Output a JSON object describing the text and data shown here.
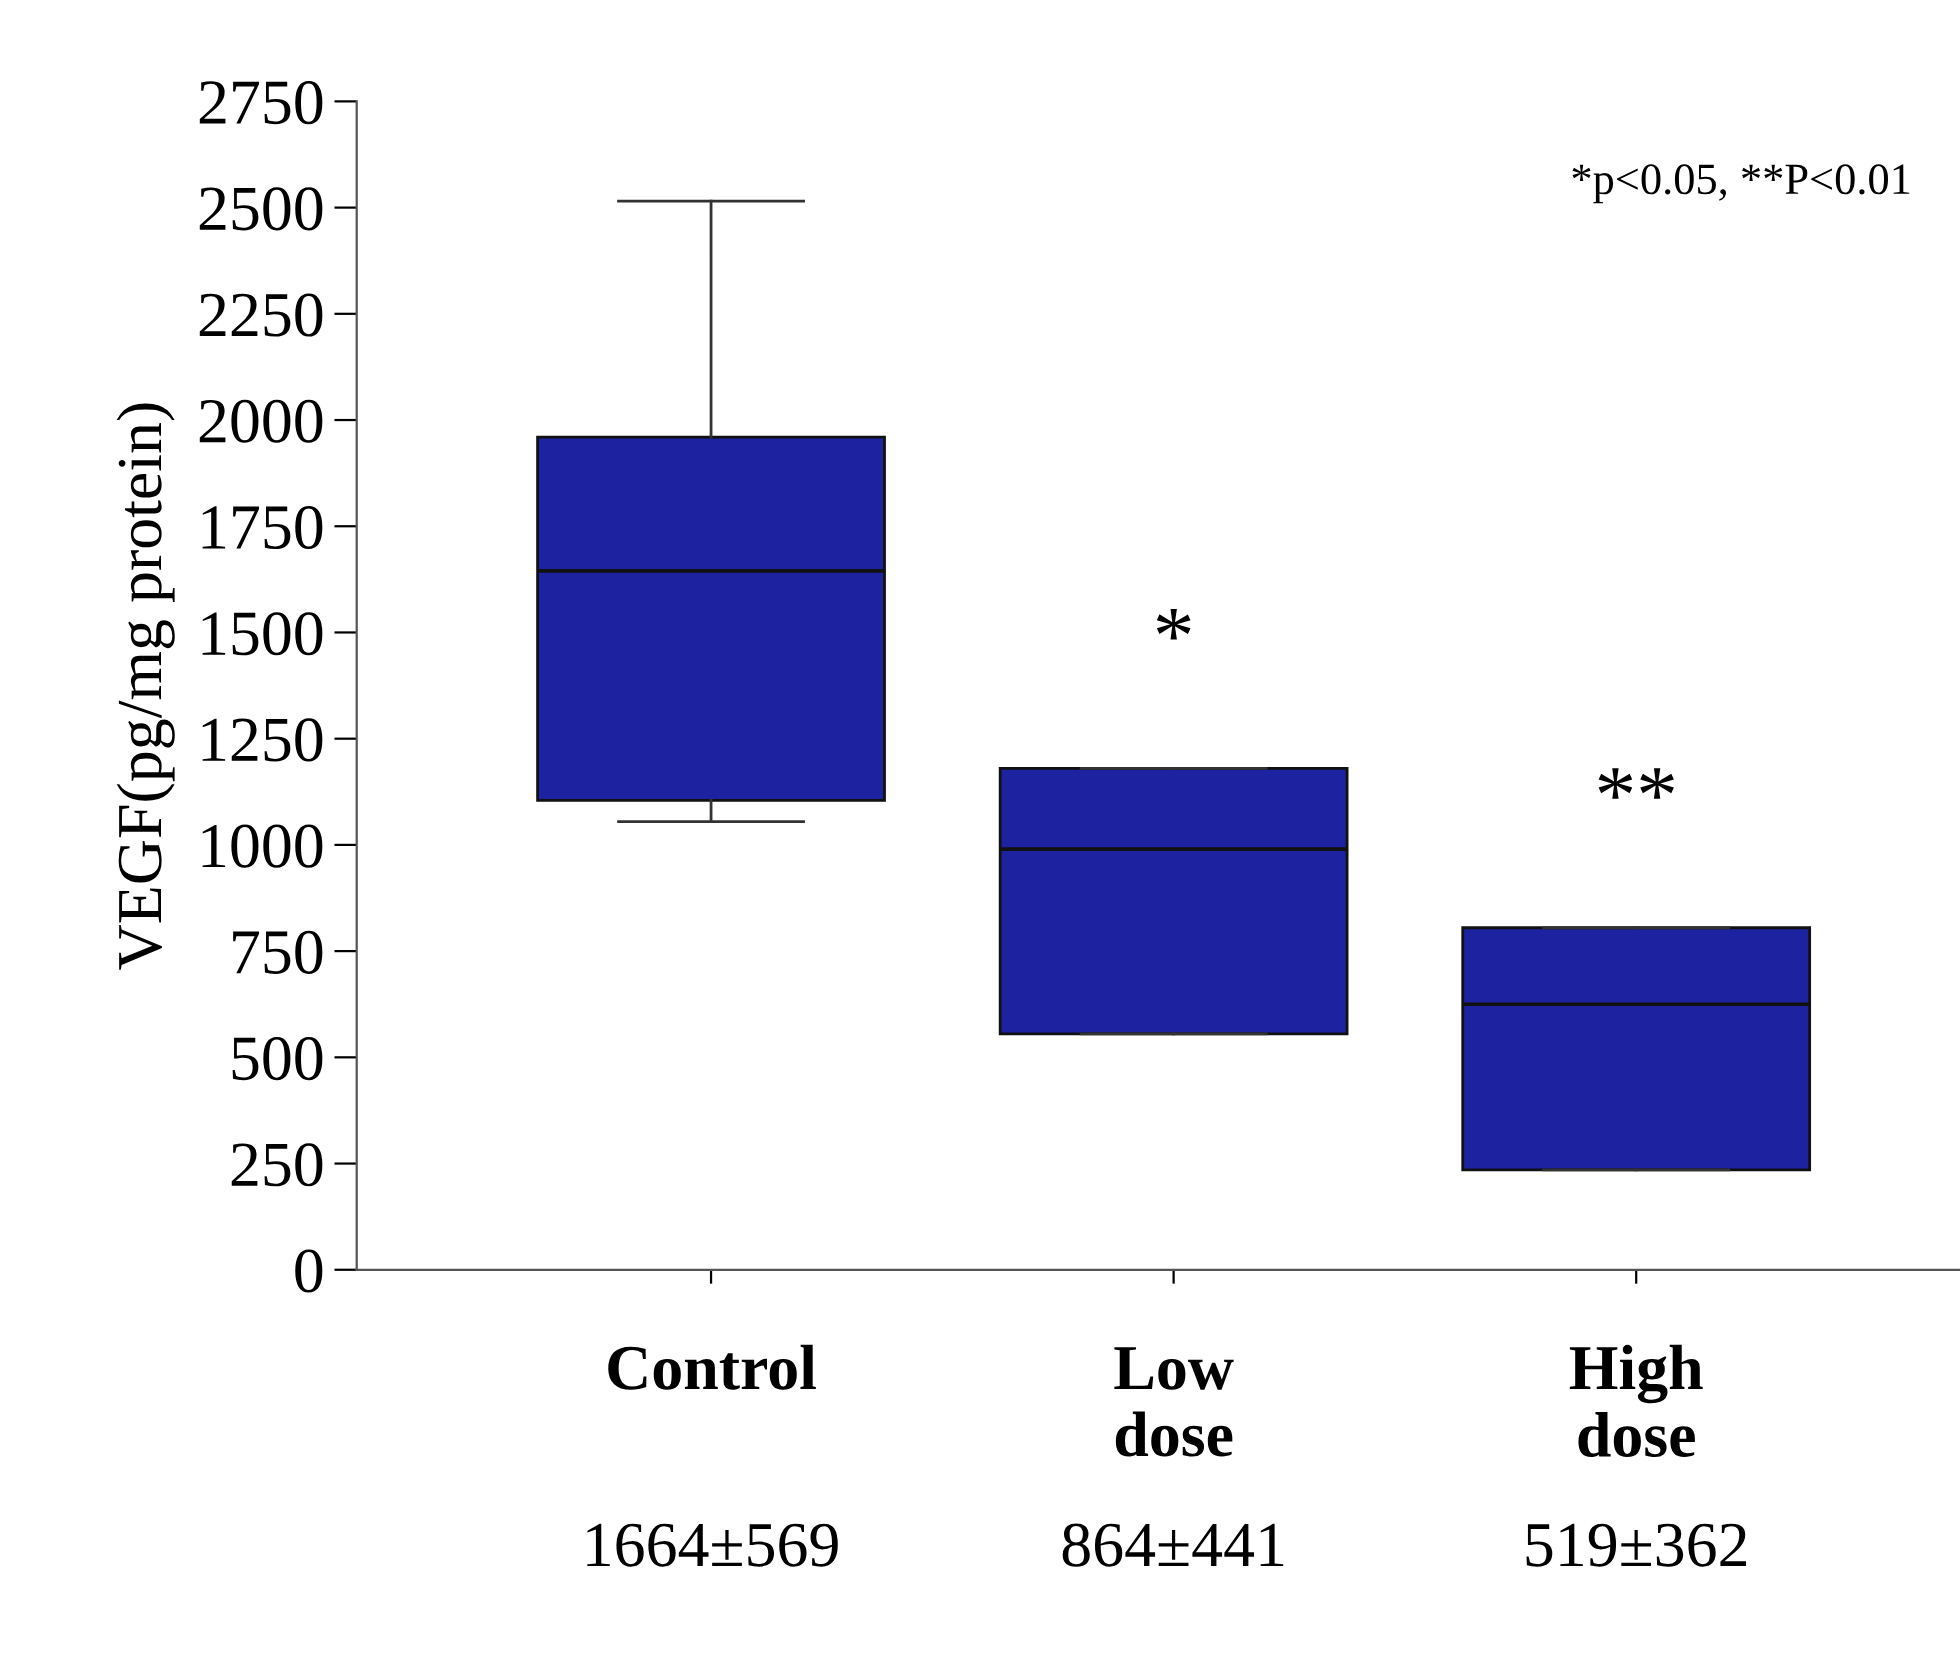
{
  "chart_data": {
    "type": "box",
    "ylabel": "VEGF(pg/mg protein)",
    "categories": [
      "Control",
      "Low\ndose",
      "High\ndose"
    ],
    "boxes": [
      {
        "low": 1055,
        "q1": 1105,
        "median": 1645,
        "q3": 1960,
        "high": 2515
      },
      {
        "low": 555,
        "q1": 555,
        "median": 990,
        "q3": 1180,
        "high": 1180
      },
      {
        "low": 235,
        "q1": 235,
        "median": 625,
        "q3": 805,
        "high": 805
      }
    ],
    "color": "#1c22a0",
    "ylim": [
      0,
      2750
    ],
    "yticks": [
      0,
      250,
      500,
      750,
      1000,
      1250,
      1500,
      1750,
      2000,
      2250,
      2500,
      2750
    ],
    "grid": false,
    "annotations": [
      "*p<0.05, **P<0.01",
      "1664±569",
      "864±441",
      "519±362",
      "*",
      "**"
    ]
  }
}
